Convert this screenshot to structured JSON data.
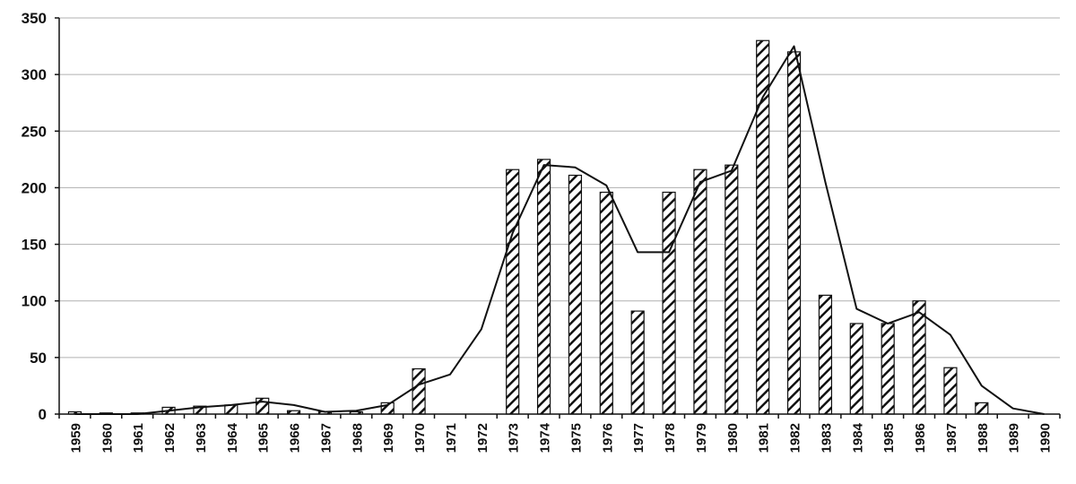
{
  "chart_data": {
    "type": "bar",
    "title": "",
    "xlabel": "",
    "ylabel": "",
    "ylim": [
      0,
      350
    ],
    "y_ticks": [
      0,
      50,
      100,
      150,
      200,
      250,
      300,
      350
    ],
    "y_tick_labels": [
      "0",
      "50",
      "100",
      "150",
      "200",
      "250",
      "300",
      "350"
    ],
    "grid": "horizontal",
    "legend": "none",
    "categories": [
      "1959",
      "1960",
      "1961",
      "1962",
      "1963",
      "1964",
      "1965",
      "1966",
      "1967",
      "1968",
      "1969",
      "1970",
      "1971",
      "1972",
      "1973",
      "1974",
      "1975",
      "1976",
      "1977",
      "1978",
      "1979",
      "1980",
      "1981",
      "1982",
      "1983",
      "1984",
      "1985",
      "1986",
      "1987",
      "1988",
      "1989",
      "1990"
    ],
    "series": [
      {
        "kind": "bar",
        "fill": "diagonal-hatch",
        "values": [
          2,
          1,
          1,
          6,
          7,
          8,
          14,
          3,
          2,
          2,
          10,
          40,
          0,
          0,
          216,
          225,
          211,
          196,
          91,
          196,
          216,
          220,
          330,
          320,
          105,
          80,
          80,
          100,
          41,
          10,
          0,
          0
        ]
      },
      {
        "kind": "line",
        "values": [
          0,
          0,
          0,
          3,
          6,
          8,
          11,
          8,
          2,
          3,
          8,
          26,
          35,
          75,
          160,
          220,
          218,
          202,
          143,
          143,
          205,
          215,
          280,
          325,
          205,
          93,
          80,
          90,
          70,
          25,
          5,
          0
        ]
      }
    ]
  },
  "colors": {
    "bar_stroke": "#111111",
    "line": "#111111",
    "grid": "#b0b0b0",
    "axis": "#111111"
  }
}
